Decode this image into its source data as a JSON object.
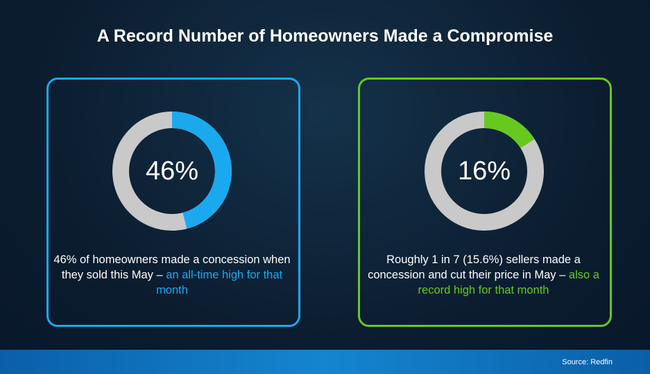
{
  "title": "A Record Number of Homeowners Made a Compromise",
  "source": "Source: Redfin",
  "chart_data": [
    {
      "type": "donut",
      "values": [
        46
      ],
      "value_labels": [
        "46%"
      ],
      "color": "#1aa9ef",
      "track_color": "#c9c9c9",
      "caption": [
        "46% of homeowners made a concession when they sold this May – ",
        "an all-time high for that month"
      ]
    },
    {
      "type": "donut",
      "values": [
        16
      ],
      "value_labels": [
        "16%"
      ],
      "color": "#66c91f",
      "track_color": "#c9c9c9",
      "caption": [
        "Roughly 1 in 7 (15.6%) sellers made a concession and cut their price in May – ",
        "also a record high for that month"
      ]
    }
  ]
}
